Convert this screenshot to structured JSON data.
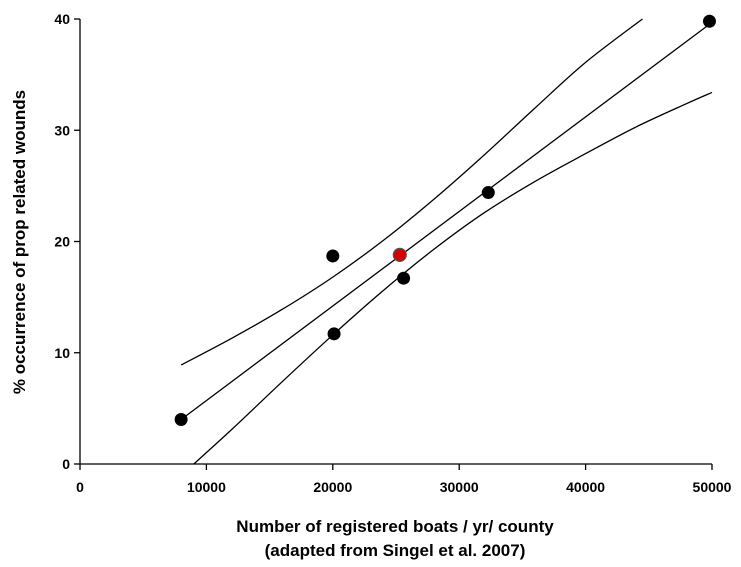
{
  "chart_data": {
    "type": "scatter",
    "title": "",
    "xlabel": "Number of registered boats / yr/ county",
    "xlabel_line2": "(adapted from Singel et al. 2007)",
    "ylabel": "% occurrence of prop related wounds",
    "xlim": [
      0,
      50000
    ],
    "ylim": [
      0,
      40
    ],
    "x_ticks": [
      0,
      10000,
      20000,
      30000,
      40000,
      50000
    ],
    "y_ticks": [
      0,
      10,
      20,
      30,
      40
    ],
    "x_tick_labels": [
      "0",
      "10000",
      "20000",
      "30000",
      "40000",
      "50000"
    ],
    "y_tick_labels": [
      "0",
      "10",
      "20",
      "30",
      "40"
    ],
    "grid": false,
    "series": [
      {
        "kind": "points",
        "color": "#000000",
        "points": [
          {
            "x": 8000,
            "y": 4
          },
          {
            "x": 20000,
            "y": 18.7
          },
          {
            "x": 20100,
            "y": 11.7
          },
          {
            "x": 25600,
            "y": 16.7
          },
          {
            "x": 32300,
            "y": 24.4
          },
          {
            "x": 49800,
            "y": 39.8
          }
        ]
      },
      {
        "kind": "highlight",
        "color": "#d40000",
        "points": [
          {
            "x": 25300,
            "y": 18.8
          }
        ]
      },
      {
        "kind": "regression",
        "color": "#000000",
        "points": [
          {
            "x": 8000,
            "y": 4
          },
          {
            "x": 50000,
            "y": 39.7
          }
        ]
      },
      {
        "kind": "upper-band",
        "color": "#000000",
        "points": [
          {
            "x": 8000,
            "y": 8.9
          },
          {
            "x": 12000,
            "y": 11.3
          },
          {
            "x": 16000,
            "y": 13.9
          },
          {
            "x": 20000,
            "y": 16.8
          },
          {
            "x": 24000,
            "y": 20.1
          },
          {
            "x": 28000,
            "y": 23.8
          },
          {
            "x": 32000,
            "y": 27.8
          },
          {
            "x": 36000,
            "y": 32.0
          },
          {
            "x": 40000,
            "y": 36.1
          },
          {
            "x": 44500,
            "y": 40.0
          }
        ]
      },
      {
        "kind": "lower-band",
        "color": "#000000",
        "points": [
          {
            "x": 9000,
            "y": 0
          },
          {
            "x": 12000,
            "y": 3.1
          },
          {
            "x": 16000,
            "y": 7.4
          },
          {
            "x": 20000,
            "y": 11.6
          },
          {
            "x": 24000,
            "y": 15.6
          },
          {
            "x": 28000,
            "y": 19.3
          },
          {
            "x": 32000,
            "y": 22.6
          },
          {
            "x": 36000,
            "y": 25.4
          },
          {
            "x": 40000,
            "y": 27.9
          },
          {
            "x": 44000,
            "y": 30.3
          },
          {
            "x": 48000,
            "y": 32.4
          },
          {
            "x": 50000,
            "y": 33.4
          }
        ]
      }
    ]
  }
}
